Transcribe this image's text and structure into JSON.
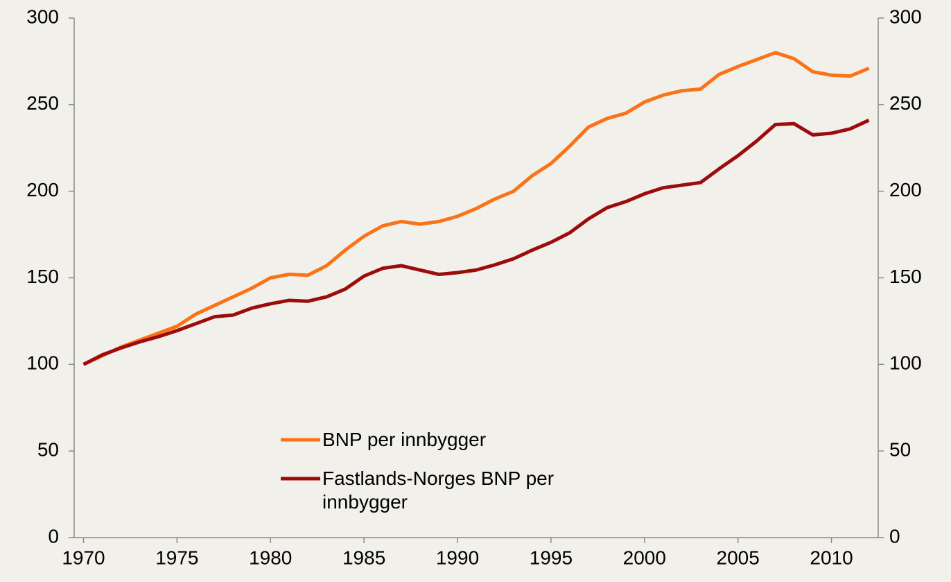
{
  "chart_data": {
    "type": "line",
    "x": [
      1970,
      1971,
      1972,
      1973,
      1974,
      1975,
      1976,
      1977,
      1978,
      1979,
      1980,
      1981,
      1982,
      1983,
      1984,
      1985,
      1986,
      1987,
      1988,
      1989,
      1990,
      1991,
      1992,
      1993,
      1994,
      1995,
      1996,
      1997,
      1998,
      1999,
      2000,
      2001,
      2002,
      2003,
      2004,
      2005,
      2006,
      2007,
      2008,
      2009,
      2010,
      2011,
      2012
    ],
    "series": [
      {
        "name": "BNP per innbygger",
        "color": "#fa7319",
        "values": [
          100,
          105,
          110,
          114,
          118,
          122,
          129,
          134,
          139,
          144,
          150,
          152,
          151.5,
          157,
          166,
          174,
          180,
          182.5,
          181,
          182.5,
          185.5,
          190,
          195.5,
          200,
          209,
          216,
          226,
          237,
          242,
          245,
          251.5,
          255.5,
          258,
          259,
          267.5,
          272,
          276,
          280,
          276.5,
          269,
          267,
          266.5,
          271
        ]
      },
      {
        "name": "Fastlands-Norges BNP per innbygger",
        "color": "#9c0c0c",
        "values": [
          100,
          105.5,
          109.5,
          113,
          116,
          119.5,
          123.5,
          127.5,
          128.5,
          132.5,
          135,
          137,
          136.5,
          139,
          143.5,
          151,
          155.5,
          157,
          154.5,
          152,
          153,
          154.5,
          157.5,
          161,
          166,
          170.5,
          176,
          184,
          190.5,
          194,
          198.5,
          202,
          203.5,
          205,
          213,
          220.5,
          229,
          238.5,
          239,
          232.5,
          233.5,
          236,
          241
        ]
      }
    ],
    "xlim": [
      1969.5,
      2012.5
    ],
    "xticks": [
      1970,
      1975,
      1980,
      1985,
      1990,
      1995,
      2000,
      2005,
      2010
    ],
    "ylim": [
      0,
      300
    ],
    "yticks": [
      0,
      50,
      100,
      150,
      200,
      250,
      300
    ],
    "y2lim": [
      0,
      300
    ],
    "y2ticks": [
      0,
      50,
      100,
      150,
      200,
      250,
      300
    ],
    "grid": false
  }
}
